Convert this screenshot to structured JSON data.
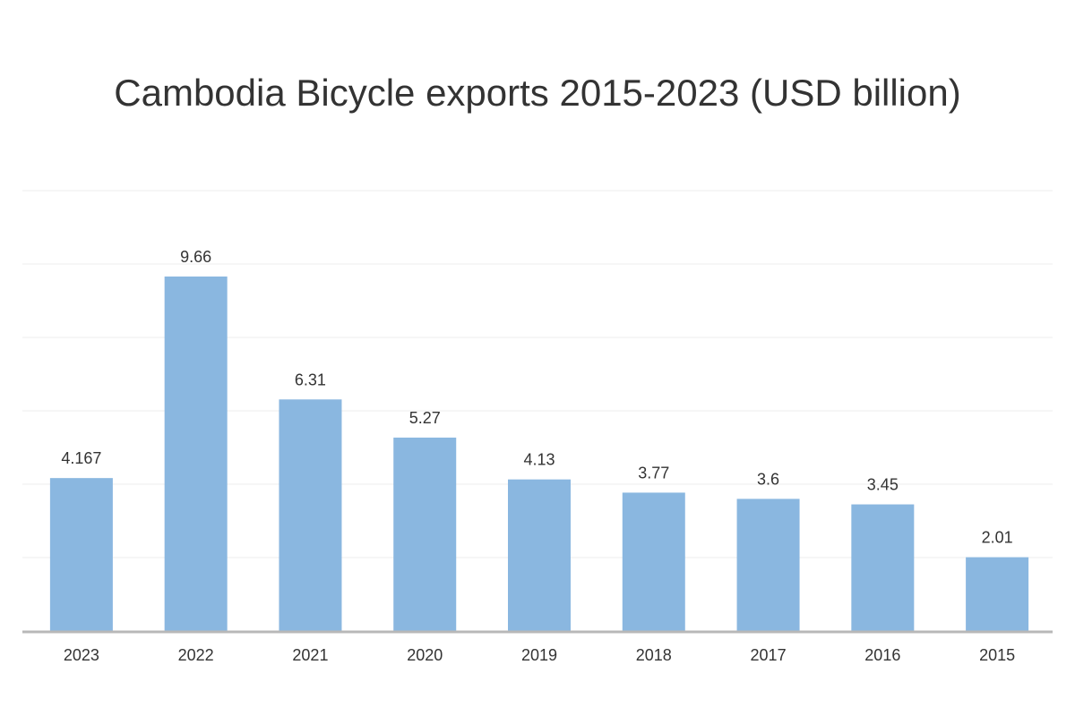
{
  "chart_data": {
    "type": "bar",
    "title": "Cambodia Bicycle exports 2015-2023 (USD billion)",
    "xlabel": "",
    "ylabel": "",
    "categories": [
      "2023",
      "2022",
      "2021",
      "2020",
      "2019",
      "2018",
      "2017",
      "2016",
      "2015"
    ],
    "values": [
      4.167,
      9.66,
      6.31,
      5.27,
      4.13,
      3.77,
      3.6,
      3.45,
      2.01
    ],
    "value_labels": [
      "4.167",
      "9.66",
      "6.31",
      "5.27",
      "4.13",
      "3.77",
      "3.6",
      "3.45",
      "2.01"
    ],
    "ylim": [
      0,
      12
    ],
    "grid": true,
    "gridline_step": 2,
    "y_tick_labels_shown": false,
    "legend": "none",
    "colors": {
      "bar": "#8ab7e0",
      "grid": "#ececec",
      "baseline": "#b8b8b8",
      "text": "#333333"
    }
  }
}
